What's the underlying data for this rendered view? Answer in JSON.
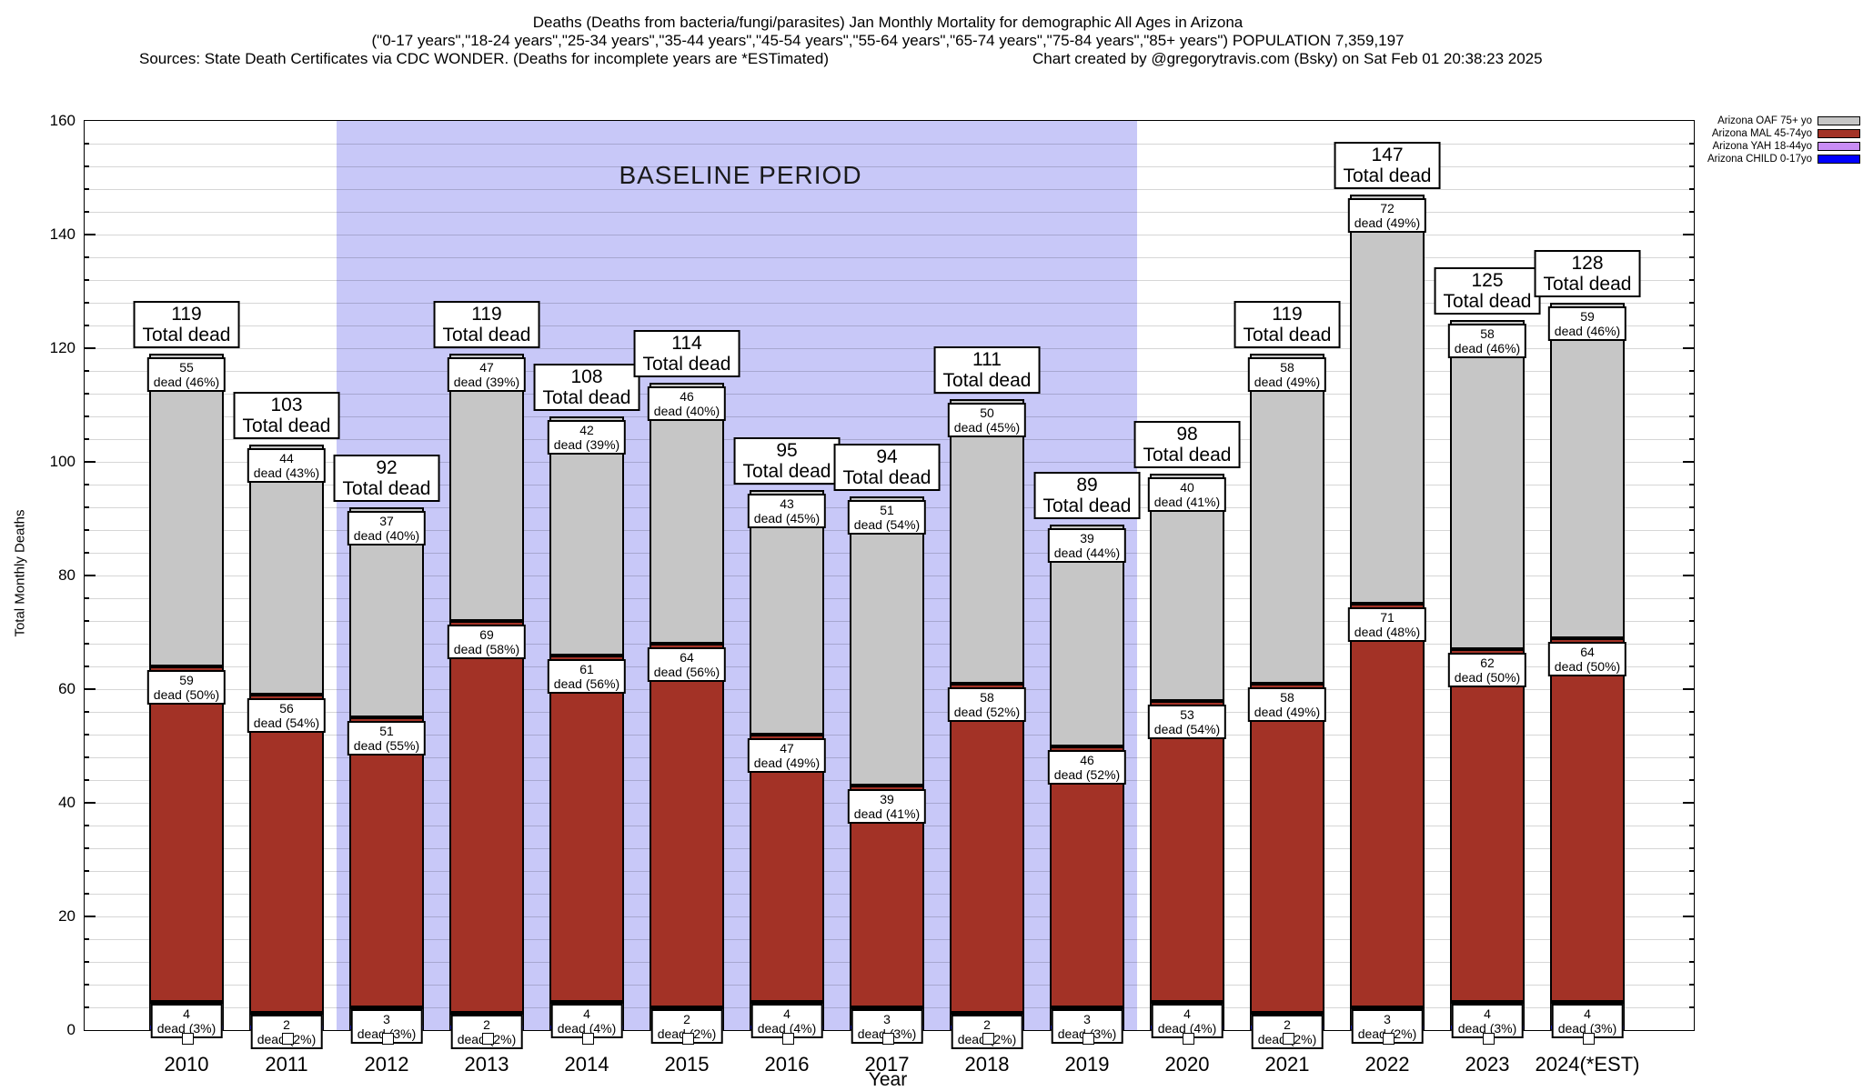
{
  "header": {
    "title_line1": "Deaths (Deaths from bacteria/fungi/parasites) Jan Monthly Mortality for demographic All Ages in Arizona",
    "title_line2": "(\"0-17 years\",\"18-24 years\",\"25-34 years\",\"35-44 years\",\"45-54 years\",\"55-64 years\",\"65-74 years\",\"75-84 years\",\"85+ years\") POPULATION 7,359,197",
    "title_line3_left": "Sources: State Death Certificates via CDC WONDER. (Deaths for incomplete years are *ESTimated)",
    "title_line3_right": "Chart created by @gregorytravis.com (Bsky) on Sat Feb 01 20:38:23 2025"
  },
  "legend": {
    "items": [
      {
        "label": "Arizona OAF 75+ yo",
        "color": "#c6c6c6"
      },
      {
        "label": "Arizona MAL 45-74yo",
        "color": "#a33226"
      },
      {
        "label": "Arizona YAH 18-44yo",
        "color": "#c98df5"
      },
      {
        "label": "Arizona CHILD 0-17yo",
        "color": "#0000ff"
      }
    ]
  },
  "chart_data": {
    "type": "bar",
    "stacked": true,
    "title": "Deaths (Deaths from bacteria/fungi/parasites) Jan Monthly Mortality for demographic All Ages in Arizona",
    "xlabel": "Year",
    "ylabel": "Total Monthly Deaths",
    "ylim": [
      0,
      160
    ],
    "ytick_interval": 20,
    "minor_grid_interval": 4,
    "grid": true,
    "legend_position": "top-right-outside",
    "total_label_suffix": "Total dead",
    "segment_label_word": "dead",
    "baseline_band": {
      "label": "BASELINE PERIOD",
      "from_category": "2012",
      "to_category": "2019",
      "color": "#c8c8f8"
    },
    "categories": [
      "2010",
      "2011",
      "2012",
      "2013",
      "2014",
      "2015",
      "2016",
      "2017",
      "2018",
      "2019",
      "2020",
      "2021",
      "2022",
      "2023",
      "2024(*EST)"
    ],
    "totals": [
      119,
      103,
      92,
      119,
      108,
      114,
      95,
      94,
      111,
      89,
      98,
      119,
      147,
      125,
      128
    ],
    "series": [
      {
        "key": "child",
        "name": "Arizona CHILD 0-17yo",
        "color": "#0000ff",
        "labeled": false,
        "values": [
          1,
          1,
          1,
          1,
          1,
          2,
          1,
          1,
          1,
          1,
          1,
          1,
          1,
          1,
          1
        ]
      },
      {
        "key": "yah",
        "name": "Arizona YAH 18-44yo",
        "color": "#c98df5",
        "labeled": true,
        "values": [
          4,
          2,
          3,
          2,
          4,
          2,
          4,
          3,
          2,
          3,
          4,
          2,
          3,
          4,
          4
        ],
        "pct": [
          3,
          2,
          3,
          2,
          4,
          2,
          4,
          3,
          2,
          3,
          4,
          2,
          2,
          3,
          3
        ]
      },
      {
        "key": "mal",
        "name": "Arizona MAL 45-74yo",
        "color": "#a33226",
        "labeled": true,
        "values": [
          59,
          56,
          51,
          69,
          61,
          64,
          47,
          39,
          58,
          46,
          53,
          58,
          71,
          62,
          64
        ],
        "pct": [
          50,
          54,
          55,
          58,
          56,
          56,
          49,
          41,
          52,
          52,
          54,
          49,
          48,
          50,
          50
        ]
      },
      {
        "key": "oaf",
        "name": "Arizona OAF 75+ yo",
        "color": "#c6c6c6",
        "labeled": true,
        "values": [
          55,
          44,
          37,
          47,
          42,
          46,
          43,
          51,
          50,
          39,
          40,
          58,
          72,
          58,
          59
        ],
        "pct": [
          46,
          43,
          40,
          39,
          39,
          40,
          45,
          54,
          45,
          44,
          41,
          49,
          49,
          46,
          46
        ]
      }
    ]
  }
}
